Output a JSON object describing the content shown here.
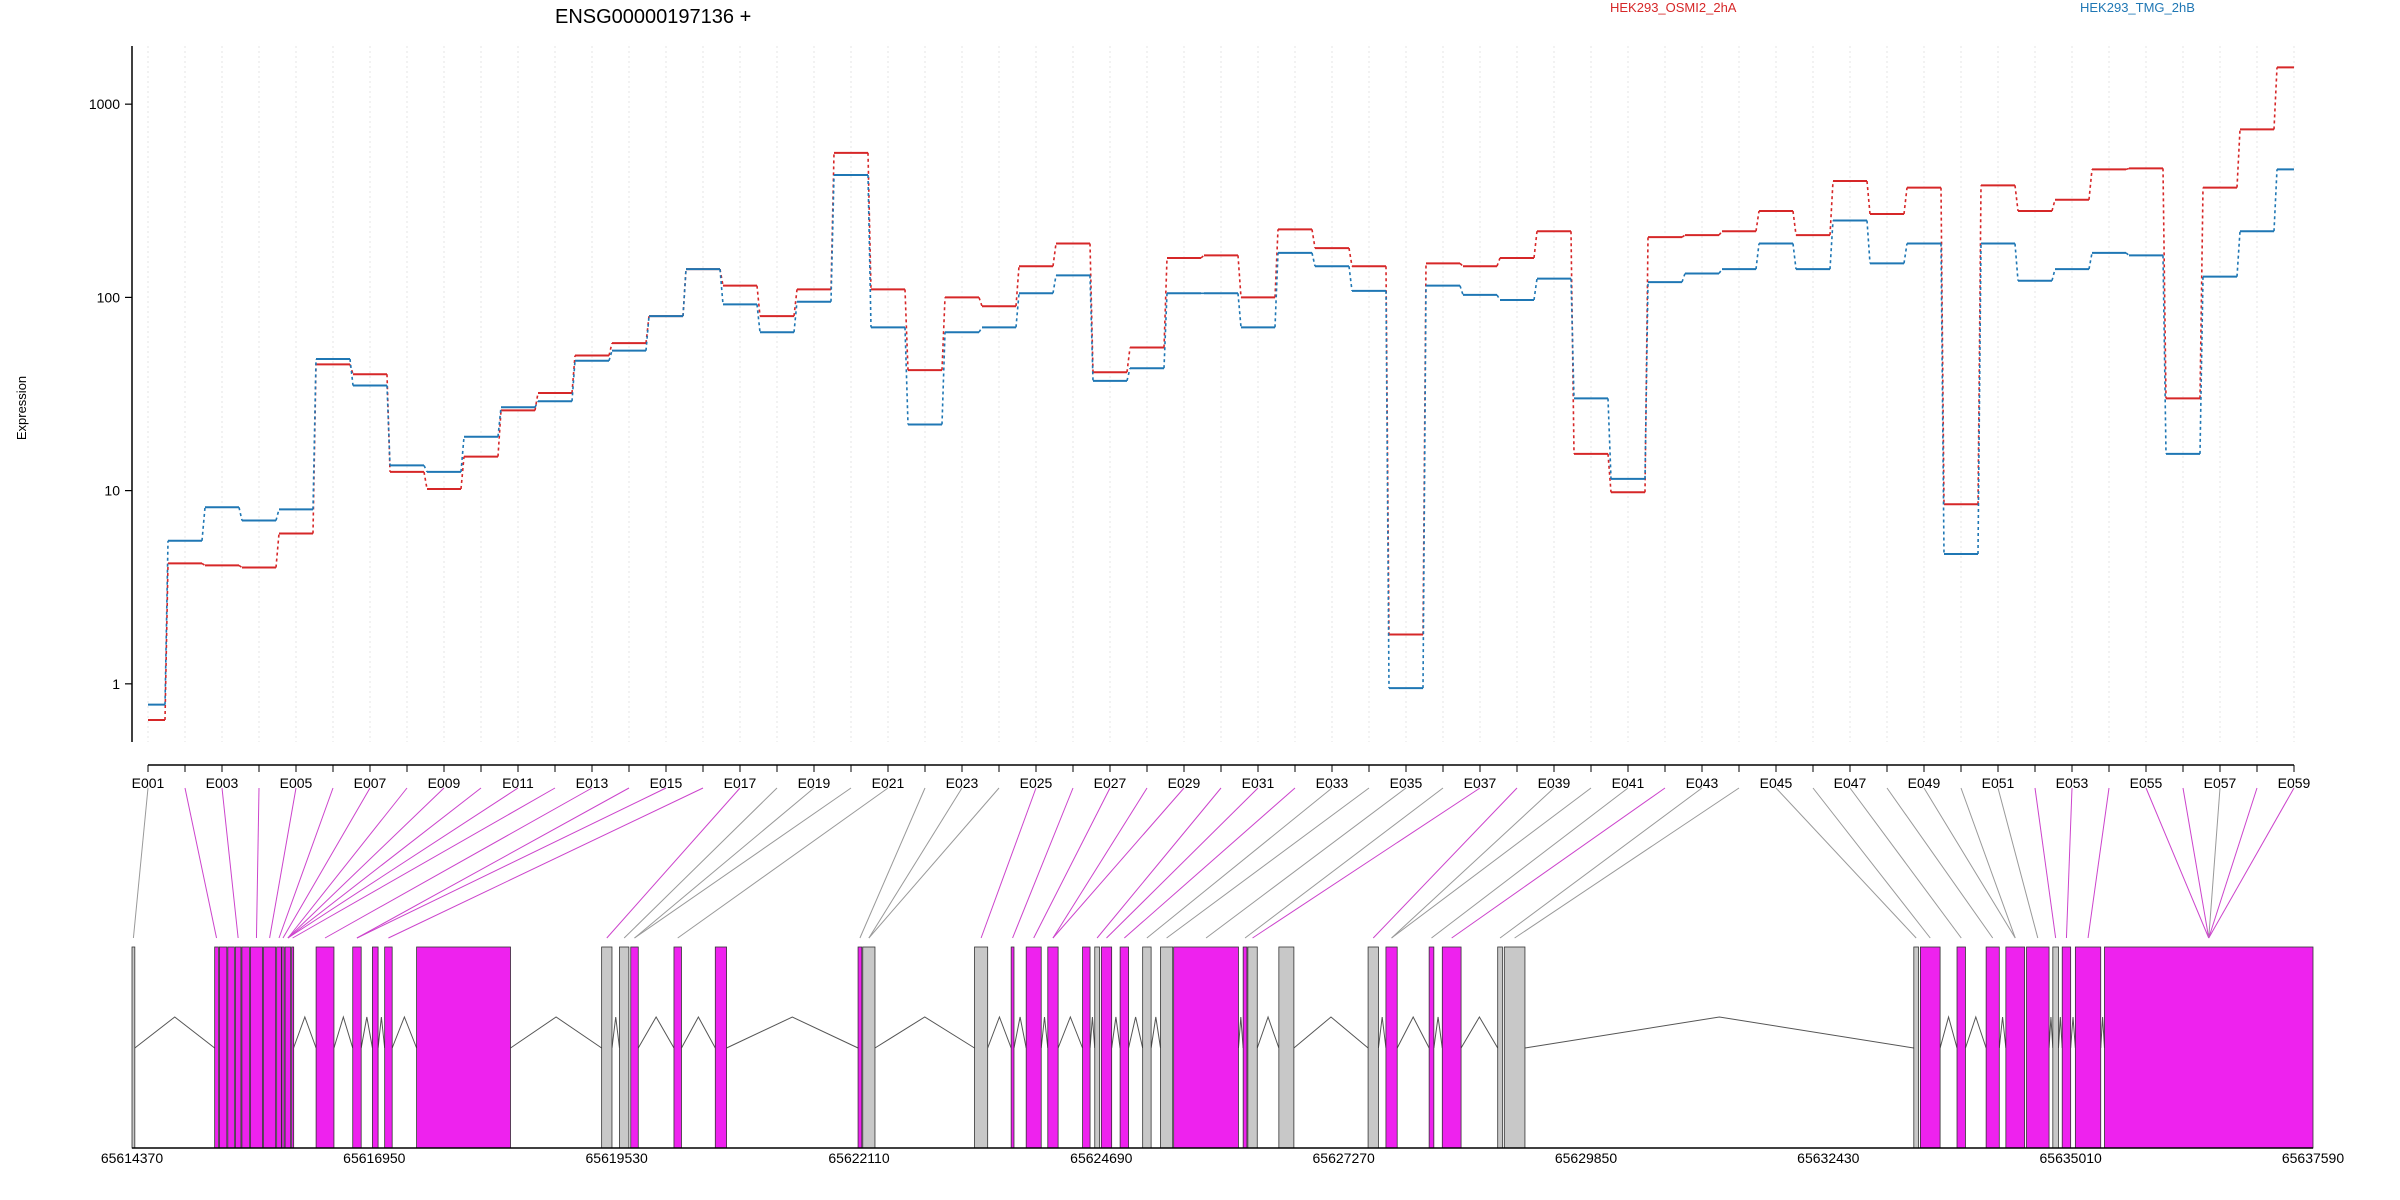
{
  "header": {
    "gene": "ENSG00000197136",
    "strand": "+",
    "legend": [
      {
        "name": "HEK293_OSMI2_2hA",
        "color": "#d62728"
      },
      {
        "name": "HEK293_TMG_2hB",
        "color": "#1f77b4"
      }
    ]
  },
  "colors": {
    "red": "#d62728",
    "blue": "#1f77b4",
    "exon_pink": "#ee22ee",
    "exon_grey": "#c8c8c8",
    "connector_pink": "#cc44cc",
    "connector_grey": "#999999"
  },
  "chart_data": {
    "type": "line",
    "title": "ENSG00000197136 +",
    "ylabel": "Expression",
    "yscale": "log",
    "ylim": [
      0.5,
      2000
    ],
    "yticks": [
      "1",
      "10",
      "100",
      "1000"
    ],
    "grid": "vertical dotted at each exon",
    "legend_placement": "top",
    "categories": [
      "E001",
      "E002",
      "E003",
      "E004",
      "E005",
      "E006",
      "E007",
      "E008",
      "E009",
      "E010",
      "E011",
      "E012",
      "E013",
      "E014",
      "E015",
      "E016",
      "E017",
      "E018",
      "E019",
      "E020",
      "E021",
      "E022",
      "E023",
      "E024",
      "E025",
      "E026",
      "E027",
      "E028",
      "E029",
      "E030",
      "E031",
      "E032",
      "E033",
      "E034",
      "E035",
      "E036",
      "E037",
      "E038",
      "E039",
      "E040",
      "E041",
      "E042",
      "E043",
      "E044",
      "E045",
      "E046",
      "E047",
      "E048",
      "E049",
      "E050",
      "E051",
      "E052",
      "E053",
      "E054",
      "E055",
      "E056",
      "E057",
      "E058",
      "E059"
    ],
    "xtick_labels": [
      "E001",
      "E003",
      "E005",
      "E007",
      "E009",
      "E011",
      "E013",
      "E015",
      "E017",
      "E019",
      "E021",
      "E023",
      "E025",
      "E027",
      "E029",
      "E031",
      "E033",
      "E035",
      "E037",
      "E039",
      "E041",
      "E043",
      "E045",
      "E047",
      "E049",
      "E051",
      "E053",
      "E055",
      "E057",
      "E059"
    ],
    "series": [
      {
        "name": "HEK293_OSMI2_2hA",
        "color": "#d62728",
        "values": [
          0.65,
          4.2,
          4.1,
          4.0,
          6.0,
          45,
          40,
          12.5,
          10.2,
          15,
          26,
          32,
          50,
          58,
          80,
          140,
          115,
          80,
          110,
          560,
          110,
          42,
          100,
          90,
          145,
          190,
          41,
          55,
          160,
          165,
          100,
          225,
          180,
          145,
          1.8,
          150,
          145,
          160,
          220,
          15.5,
          9.8,
          205,
          210,
          220,
          280,
          210,
          400,
          270,
          370,
          8.5,
          380,
          280,
          320,
          460,
          465,
          30,
          370,
          740,
          1550
        ]
      },
      {
        "name": "HEK293_TMG_2hB",
        "color": "#1f77b4",
        "values": [
          0.78,
          5.5,
          8.2,
          7.0,
          8.0,
          48,
          35,
          13.5,
          12.5,
          19,
          27,
          29,
          47,
          53,
          80,
          140,
          92,
          66,
          95,
          430,
          70,
          22,
          66,
          70,
          105,
          130,
          37,
          43,
          105,
          105,
          70,
          170,
          145,
          108,
          0.95,
          115,
          103,
          97,
          125,
          30,
          11.5,
          120,
          133,
          140,
          190,
          140,
          250,
          150,
          190,
          4.7,
          190,
          122,
          140,
          170,
          165,
          15.5,
          128,
          220,
          460
        ]
      }
    ],
    "gene_model": {
      "genomic_ticks": [
        "65614370",
        "65616950",
        "65619530",
        "65622110",
        "65624690",
        "65627270",
        "65629850",
        "65632430",
        "65635010",
        "65637590"
      ],
      "range": [
        65614370,
        65637590
      ]
    }
  }
}
